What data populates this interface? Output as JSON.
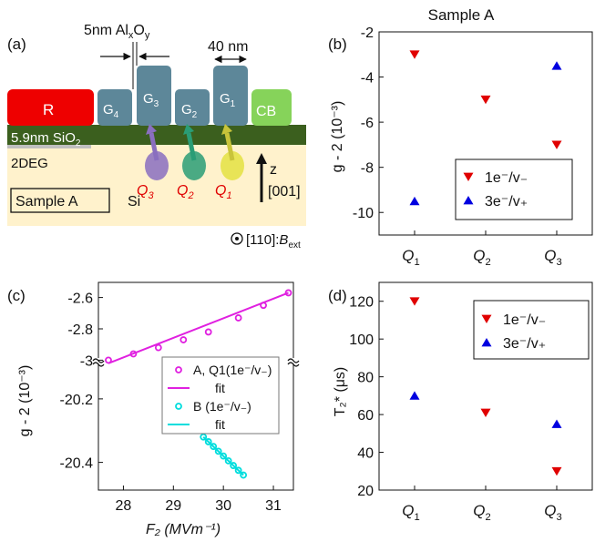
{
  "panel_labels": {
    "a": "(a)",
    "b": "(b)",
    "c": "(c)",
    "d": "(d)"
  },
  "sample_title": "Sample A",
  "device": {
    "dim_oxide": {
      "a": "5nm Al",
      "sub1": "x",
      "b": "O",
      "sub2": "y"
    },
    "dim_width": "40 nm",
    "R": "R",
    "CB": "CB",
    "gates": [
      {
        "name": "G",
        "sub": "4"
      },
      {
        "name": "G",
        "sub": "3"
      },
      {
        "name": "G",
        "sub": "2"
      },
      {
        "name": "G",
        "sub": "1"
      }
    ],
    "sio2": {
      "a": "5.9nm SiO",
      "sub": "2"
    },
    "twodeg": "2DEG",
    "dots": [
      {
        "name": "Q",
        "sub": "3"
      },
      {
        "name": "Q",
        "sub": "2"
      },
      {
        "name": "Q",
        "sub": "1"
      }
    ],
    "z_label": "z",
    "dir001": "[001]",
    "sample_box": "Sample A",
    "si": "Si",
    "dir110": "[110]:",
    "bext": {
      "a": "B",
      "sub": "ext"
    },
    "colors": {
      "R": "#ee0000",
      "CB": "#86d35a",
      "gate": "#5d8799",
      "sio2": "#3b5f1e",
      "substrate": "#fff2cc",
      "dots": [
        "#8a6fbf",
        "#2a9d76",
        "#e6e24a"
      ]
    }
  },
  "chart_data": [
    {
      "panel": "(b)",
      "type": "scatter",
      "title": "Sample A",
      "ylabel": "g - 2  (10⁻³)",
      "categories": [
        "Q1",
        "Q2",
        "Q3"
      ],
      "ylim": [
        -11,
        -2
      ],
      "yticks": [
        "-2",
        "-4",
        "-6",
        "-8",
        "-10"
      ],
      "legend": "right",
      "series": [
        {
          "name": "1e⁻/v₋",
          "marker": "down-triangle",
          "color": "#e00000",
          "values": [
            -3.0,
            -5.0,
            -7.0
          ]
        },
        {
          "name": "3e⁻/v₊",
          "marker": "up-triangle",
          "color": "#0000e0",
          "values": [
            -9.5,
            null,
            -3.5
          ]
        }
      ]
    },
    {
      "panel": "(c)",
      "type": "scatter",
      "xlabel": "F₂ (MVm⁻¹)",
      "ylabel": "g - 2  (10⁻³)",
      "xlim": [
        27.5,
        31.4
      ],
      "xticks": [
        "28",
        "29",
        "30",
        "31"
      ],
      "upper_ylim": [
        -3.05,
        -2.55
      ],
      "upper_yticks": [
        "-2.6",
        "-2.8",
        "-3"
      ],
      "lower_ylim": [
        -20.47,
        -20.12
      ],
      "lower_yticks": [
        "-20.2",
        "-20.4"
      ],
      "axis_break": true,
      "legend": "center",
      "series": [
        {
          "name": "A, Q1(1e⁻/v₋)",
          "marker": "circle",
          "color": "#e020e0",
          "axis": "upper",
          "x": [
            27.7,
            28.2,
            28.7,
            29.2,
            29.7,
            30.3,
            30.8,
            31.3
          ],
          "y": [
            -3.0,
            -2.96,
            -2.92,
            -2.87,
            -2.82,
            -2.73,
            -2.65,
            -2.57
          ]
        },
        {
          "name": "fit",
          "type": "line",
          "color": "#e020e0",
          "axis": "upper",
          "x": [
            27.7,
            31.3
          ],
          "y": [
            -3.02,
            -2.57
          ]
        },
        {
          "name": "B (1e⁻/v₋)",
          "marker": "circle",
          "color": "#00dddd",
          "axis": "lower",
          "x": [
            29.6,
            29.7,
            29.8,
            29.9,
            30.0,
            30.1,
            30.2,
            30.3,
            30.4
          ],
          "y": [
            -20.32,
            -20.335,
            -20.35,
            -20.365,
            -20.38,
            -20.395,
            -20.41,
            -20.425,
            -20.44
          ]
        },
        {
          "name": "fit",
          "type": "line",
          "color": "#00dddd",
          "axis": "lower",
          "x": [
            29.6,
            30.4
          ],
          "y": [
            -20.32,
            -20.44
          ]
        }
      ]
    },
    {
      "panel": "(d)",
      "type": "scatter",
      "ylabel": "T₂* (μs)",
      "categories": [
        "Q1",
        "Q2",
        "Q3"
      ],
      "ylim": [
        20,
        130
      ],
      "yticks": [
        "120",
        "100",
        "80",
        "60",
        "40",
        "20"
      ],
      "legend": "top-right",
      "series": [
        {
          "name": "1e⁻/v₋",
          "marker": "down-triangle",
          "color": "#e00000",
          "values": [
            120,
            61,
            30
          ]
        },
        {
          "name": "3e⁻/v₊",
          "marker": "up-triangle",
          "color": "#0000e0",
          "values": [
            70,
            null,
            55
          ]
        }
      ]
    }
  ]
}
